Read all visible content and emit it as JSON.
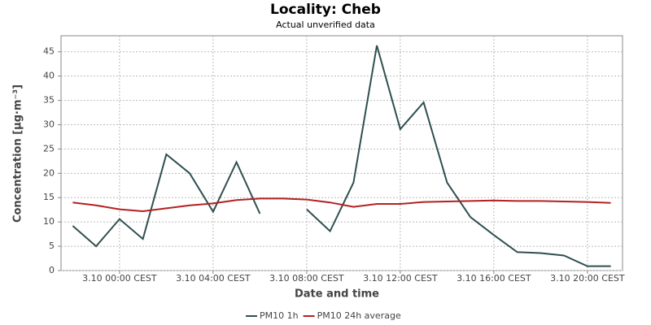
{
  "chart_data": {
    "type": "line",
    "title": "Locality: Cheb",
    "subtitle": "Actual unverified data",
    "x_label": "Date and time",
    "y_label": "Concentration [µg·m⁻³]",
    "categories": [
      null,
      null,
      "3.10 00:00 CEST",
      null,
      null,
      null,
      "3.10 04:00 CEST",
      null,
      null,
      null,
      "3.10 08:00 CEST",
      null,
      null,
      null,
      "3.10 12:00 CEST",
      null,
      null,
      null,
      "3.10 16:00 CEST",
      null,
      null,
      null,
      "3.10 20:00 CEST",
      null
    ],
    "series": [
      {
        "name": "PM10 1h",
        "color": "#2f4f4f",
        "values": [
          9.2,
          5.0,
          10.6,
          6.5,
          23.9,
          20.0,
          12.1,
          22.3,
          11.7,
          null,
          12.6,
          8.1,
          18.1,
          46.3,
          29.1,
          34.6,
          18.1,
          11.0,
          7.3,
          3.8,
          3.6,
          3.1,
          0.9,
          0.9
        ]
      },
      {
        "name": "PM10 24h average",
        "color": "#b22222",
        "values": [
          14.0,
          13.4,
          12.6,
          12.2,
          12.8,
          13.4,
          13.8,
          14.5,
          14.8,
          14.8,
          14.6,
          14.0,
          13.1,
          13.7,
          13.7,
          14.1,
          14.2,
          14.3,
          14.4,
          14.3,
          14.3,
          14.2,
          14.1,
          13.9
        ]
      }
    ],
    "ylim": [
      0,
      48.3
    ],
    "yticks": [
      0,
      5,
      10,
      15,
      20,
      25,
      30,
      35,
      40,
      45
    ],
    "grid": true
  }
}
